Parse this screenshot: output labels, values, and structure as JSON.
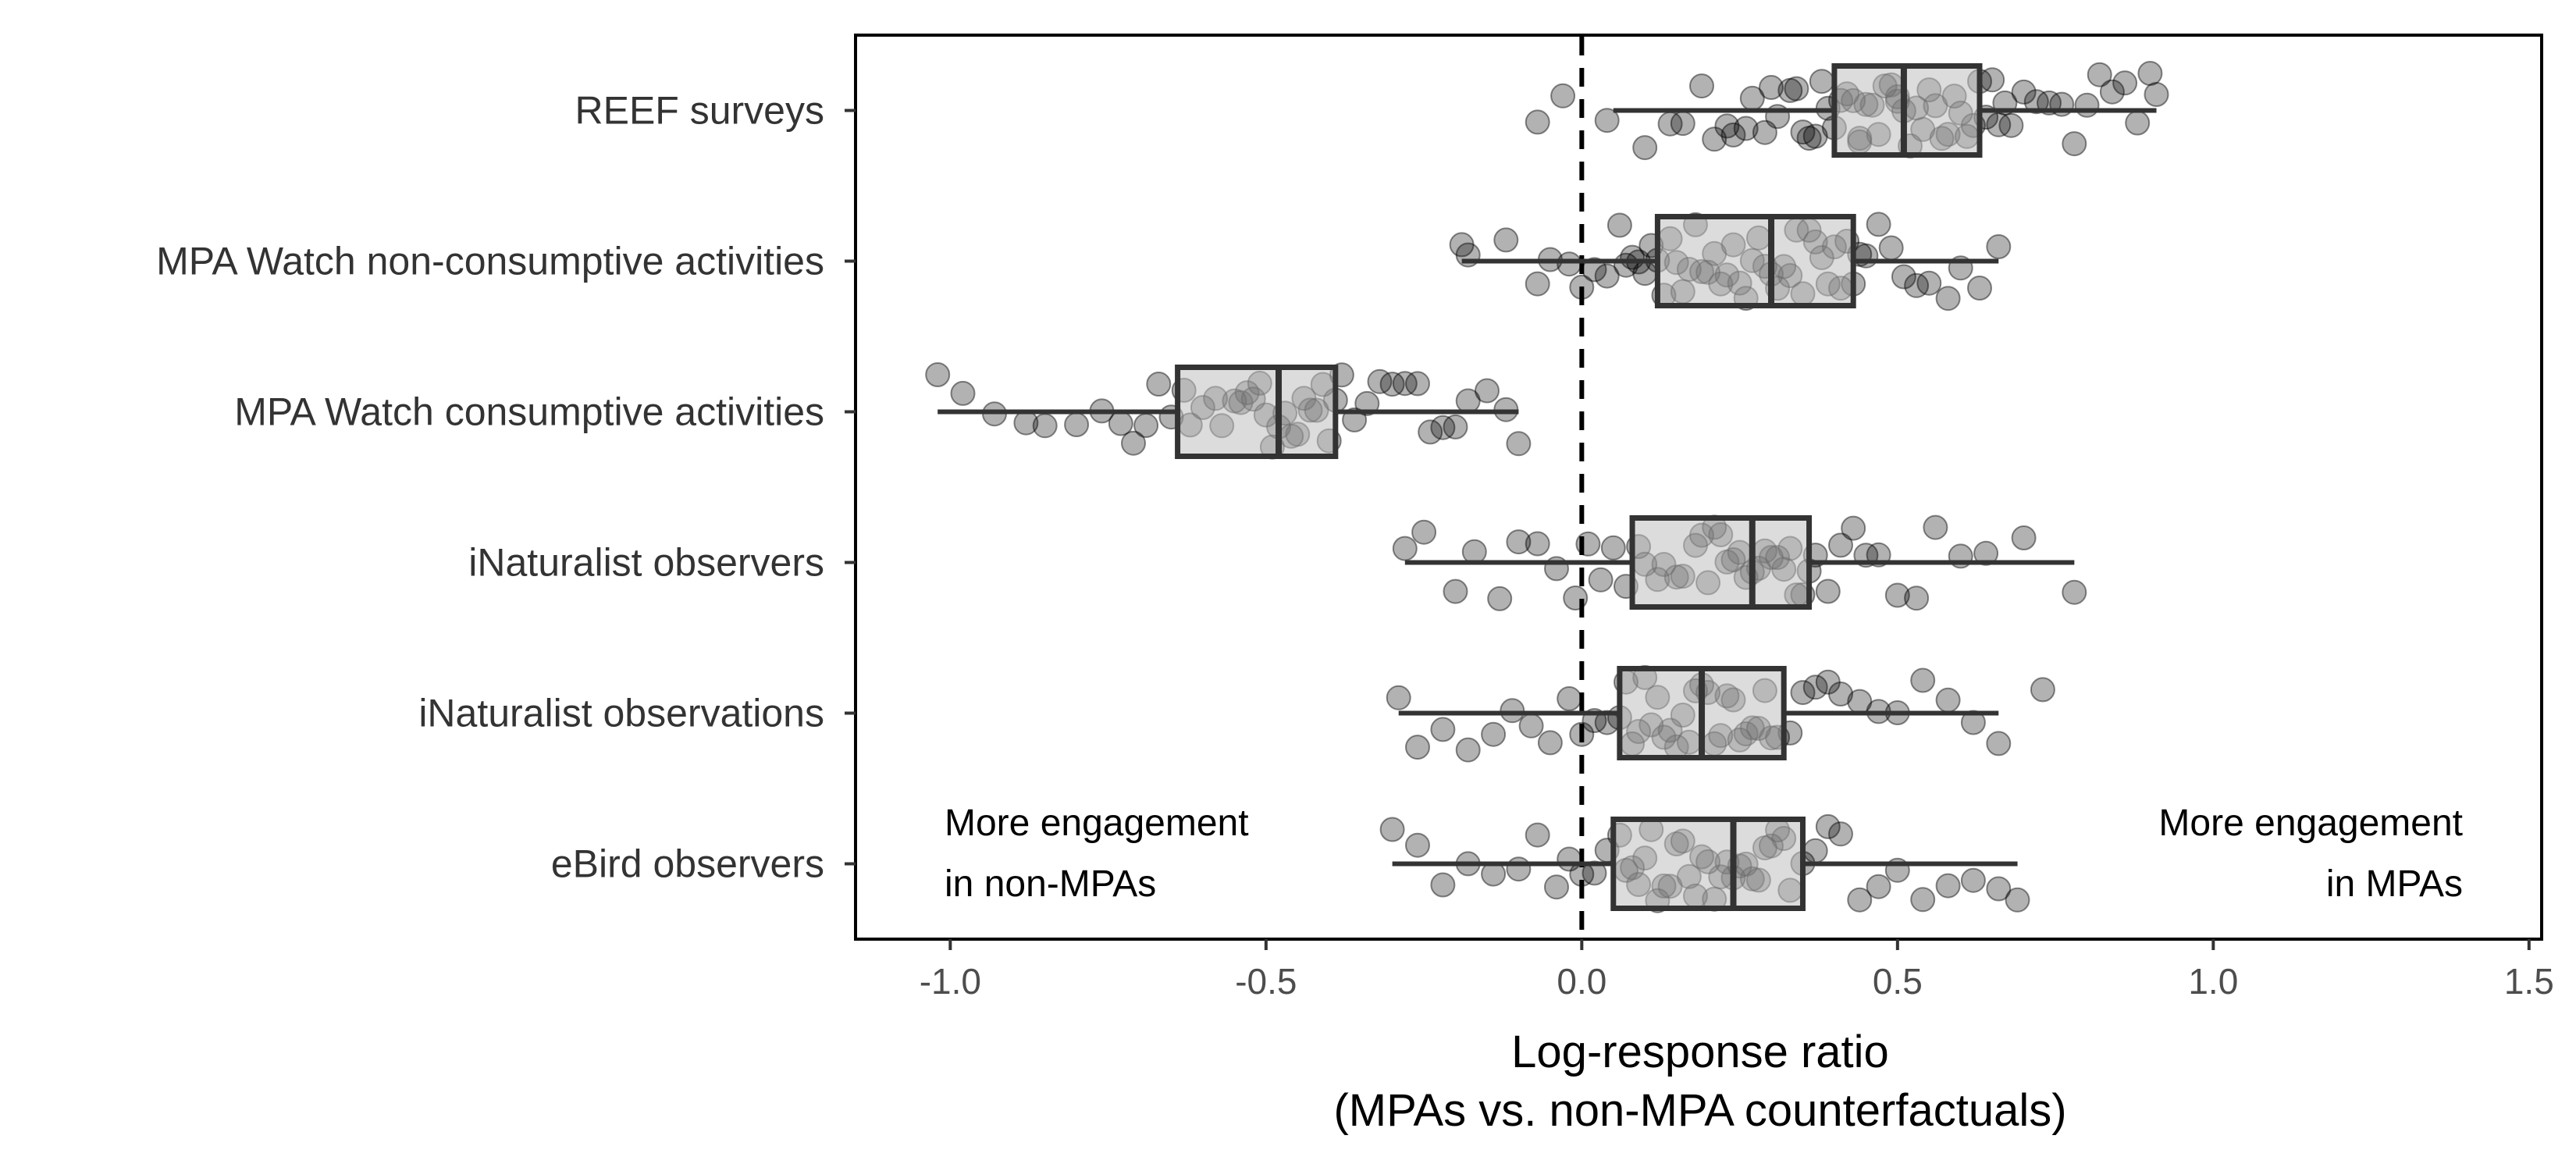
{
  "chart_data": {
    "type": "boxplot",
    "orientation": "horizontal",
    "xlabel_line1": "Log-response ratio",
    "xlabel_line2": "(MPAs vs. non-MPA counterfactuals)",
    "xlim": [
      -1.15,
      1.52
    ],
    "xticks": [
      -1.0,
      -0.5,
      0.0,
      0.5,
      1.0,
      1.5
    ],
    "xtick_labels": [
      "-1.0",
      "-0.5",
      "0.0",
      "0.5",
      "1.0",
      "1.5"
    ],
    "reference_line": 0.0,
    "annotations": {
      "left_line1": "More engagement",
      "left_line2": "in non-MPAs",
      "right_line1": "More engagement",
      "right_line2": "in MPAs"
    },
    "colors": {
      "box_fill": "#c0c0c0",
      "box_stroke": "#333333",
      "point": "#000000",
      "point_opacity": 0.3
    },
    "categories": [
      {
        "name": "REEF surveys",
        "whisker_low": 0.05,
        "q1": 0.4,
        "median": 0.51,
        "q3": 0.63,
        "whisker_high": 0.91,
        "points": [
          -0.07,
          -0.03,
          0.04,
          0.1,
          0.14,
          0.16,
          0.19,
          0.21,
          0.23,
          0.24,
          0.26,
          0.27,
          0.29,
          0.3,
          0.31,
          0.33,
          0.34,
          0.35,
          0.36,
          0.37,
          0.38,
          0.39,
          0.4,
          0.41,
          0.42,
          0.43,
          0.44,
          0.44,
          0.45,
          0.46,
          0.47,
          0.48,
          0.49,
          0.5,
          0.5,
          0.51,
          0.52,
          0.53,
          0.54,
          0.55,
          0.56,
          0.57,
          0.58,
          0.59,
          0.6,
          0.61,
          0.62,
          0.63,
          0.64,
          0.65,
          0.66,
          0.67,
          0.68,
          0.7,
          0.72,
          0.74,
          0.76,
          0.78,
          0.8,
          0.82,
          0.84,
          0.86,
          0.88,
          0.9,
          0.91
        ]
      },
      {
        "name": "MPA Watch non-consumptive activities",
        "whisker_low": -0.19,
        "q1": 0.12,
        "median": 0.3,
        "q3": 0.43,
        "whisker_high": 0.66,
        "points": [
          -0.19,
          -0.18,
          -0.12,
          -0.07,
          -0.05,
          -0.02,
          0.0,
          0.02,
          0.04,
          0.06,
          0.07,
          0.08,
          0.09,
          0.1,
          0.11,
          0.12,
          0.13,
          0.14,
          0.15,
          0.16,
          0.17,
          0.18,
          0.19,
          0.2,
          0.21,
          0.22,
          0.23,
          0.24,
          0.25,
          0.26,
          0.27,
          0.28,
          0.29,
          0.3,
          0.31,
          0.32,
          0.33,
          0.34,
          0.35,
          0.36,
          0.37,
          0.38,
          0.39,
          0.4,
          0.41,
          0.42,
          0.43,
          0.44,
          0.45,
          0.47,
          0.49,
          0.51,
          0.53,
          0.55,
          0.58,
          0.6,
          0.63,
          0.66
        ]
      },
      {
        "name": "MPA Watch consumptive activities",
        "whisker_low": -1.02,
        "q1": -0.64,
        "median": -0.48,
        "q3": -0.39,
        "whisker_high": -0.1,
        "points": [
          -1.02,
          -0.98,
          -0.93,
          -0.88,
          -0.85,
          -0.8,
          -0.76,
          -0.73,
          -0.71,
          -0.69,
          -0.67,
          -0.65,
          -0.63,
          -0.62,
          -0.6,
          -0.58,
          -0.57,
          -0.55,
          -0.54,
          -0.53,
          -0.52,
          -0.51,
          -0.5,
          -0.49,
          -0.48,
          -0.47,
          -0.46,
          -0.45,
          -0.44,
          -0.43,
          -0.42,
          -0.41,
          -0.4,
          -0.39,
          -0.38,
          -0.36,
          -0.34,
          -0.32,
          -0.3,
          -0.28,
          -0.26,
          -0.24,
          -0.22,
          -0.2,
          -0.18,
          -0.15,
          -0.12,
          -0.1
        ]
      },
      {
        "name": "iNaturalist observers",
        "whisker_low": -0.28,
        "q1": 0.08,
        "median": 0.27,
        "q3": 0.36,
        "whisker_high": 0.78,
        "points": [
          -0.28,
          -0.25,
          -0.2,
          -0.17,
          -0.13,
          -0.1,
          -0.07,
          -0.04,
          -0.01,
          0.01,
          0.03,
          0.05,
          0.07,
          0.09,
          0.1,
          0.12,
          0.13,
          0.15,
          0.16,
          0.18,
          0.19,
          0.2,
          0.21,
          0.22,
          0.23,
          0.24,
          0.25,
          0.26,
          0.27,
          0.28,
          0.29,
          0.3,
          0.31,
          0.32,
          0.33,
          0.34,
          0.35,
          0.36,
          0.37,
          0.39,
          0.41,
          0.43,
          0.45,
          0.47,
          0.5,
          0.53,
          0.56,
          0.6,
          0.64,
          0.7,
          0.78
        ]
      },
      {
        "name": "iNaturalist observations",
        "whisker_low": -0.29,
        "q1": 0.06,
        "median": 0.19,
        "q3": 0.32,
        "whisker_high": 0.66,
        "points": [
          -0.29,
          -0.26,
          -0.22,
          -0.18,
          -0.14,
          -0.11,
          -0.08,
          -0.05,
          -0.02,
          0.0,
          0.02,
          0.04,
          0.06,
          0.07,
          0.08,
          0.09,
          0.1,
          0.11,
          0.12,
          0.13,
          0.14,
          0.15,
          0.16,
          0.17,
          0.18,
          0.19,
          0.2,
          0.21,
          0.22,
          0.23,
          0.24,
          0.25,
          0.26,
          0.27,
          0.28,
          0.29,
          0.3,
          0.31,
          0.33,
          0.35,
          0.37,
          0.39,
          0.41,
          0.44,
          0.47,
          0.5,
          0.54,
          0.58,
          0.62,
          0.66,
          0.73
        ]
      },
      {
        "name": "eBird observers",
        "whisker_low": -0.3,
        "q1": 0.05,
        "median": 0.24,
        "q3": 0.35,
        "whisker_high": 0.69,
        "points": [
          -0.3,
          -0.26,
          -0.22,
          -0.18,
          -0.14,
          -0.1,
          -0.07,
          -0.04,
          -0.02,
          0.0,
          0.02,
          0.04,
          0.06,
          0.07,
          0.08,
          0.09,
          0.1,
          0.11,
          0.12,
          0.13,
          0.14,
          0.15,
          0.16,
          0.17,
          0.18,
          0.19,
          0.2,
          0.21,
          0.22,
          0.23,
          0.24,
          0.25,
          0.26,
          0.27,
          0.28,
          0.29,
          0.3,
          0.31,
          0.32,
          0.33,
          0.35,
          0.37,
          0.39,
          0.41,
          0.44,
          0.47,
          0.5,
          0.54,
          0.58,
          0.62,
          0.66,
          0.69
        ]
      }
    ]
  }
}
